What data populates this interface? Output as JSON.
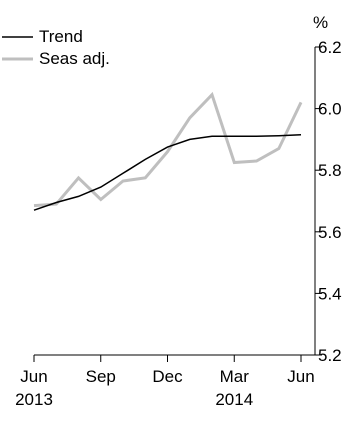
{
  "chart_data": {
    "type": "line",
    "x": [
      "Jun 2013",
      "Jul 2013",
      "Aug 2013",
      "Sep 2013",
      "Oct 2013",
      "Nov 2013",
      "Dec 2013",
      "Jan 2014",
      "Feb 2014",
      "Mar 2014",
      "Apr 2014",
      "May 2014",
      "Jun 2014"
    ],
    "x_tick_labels": [
      {
        "label": "Jun",
        "year": "2013",
        "index": 0
      },
      {
        "label": "Sep",
        "year": "",
        "index": 3
      },
      {
        "label": "Dec",
        "year": "",
        "index": 6
      },
      {
        "label": "Mar",
        "year": "2014",
        "index": 9
      },
      {
        "label": "Jun",
        "year": "",
        "index": 12
      }
    ],
    "y_unit": "%",
    "ylim": [
      5.2,
      6.2
    ],
    "y_ticks": [
      "5.2",
      "5.4",
      "5.6",
      "5.8",
      "6.0",
      "6.2"
    ],
    "y_axis_position": "right",
    "grid": false,
    "legend_position": "top-left",
    "series": [
      {
        "name": "Trend",
        "color": "#000000",
        "values": [
          5.67,
          5.695,
          5.715,
          5.745,
          5.79,
          5.835,
          5.875,
          5.9,
          5.91,
          5.91,
          5.91,
          5.912,
          5.915
        ]
      },
      {
        "name": "Seas adj.",
        "color": "#bfbfbf",
        "values": [
          5.685,
          5.69,
          5.775,
          5.705,
          5.765,
          5.775,
          5.86,
          5.97,
          6.045,
          5.825,
          5.83,
          5.87,
          6.02
        ]
      }
    ]
  }
}
